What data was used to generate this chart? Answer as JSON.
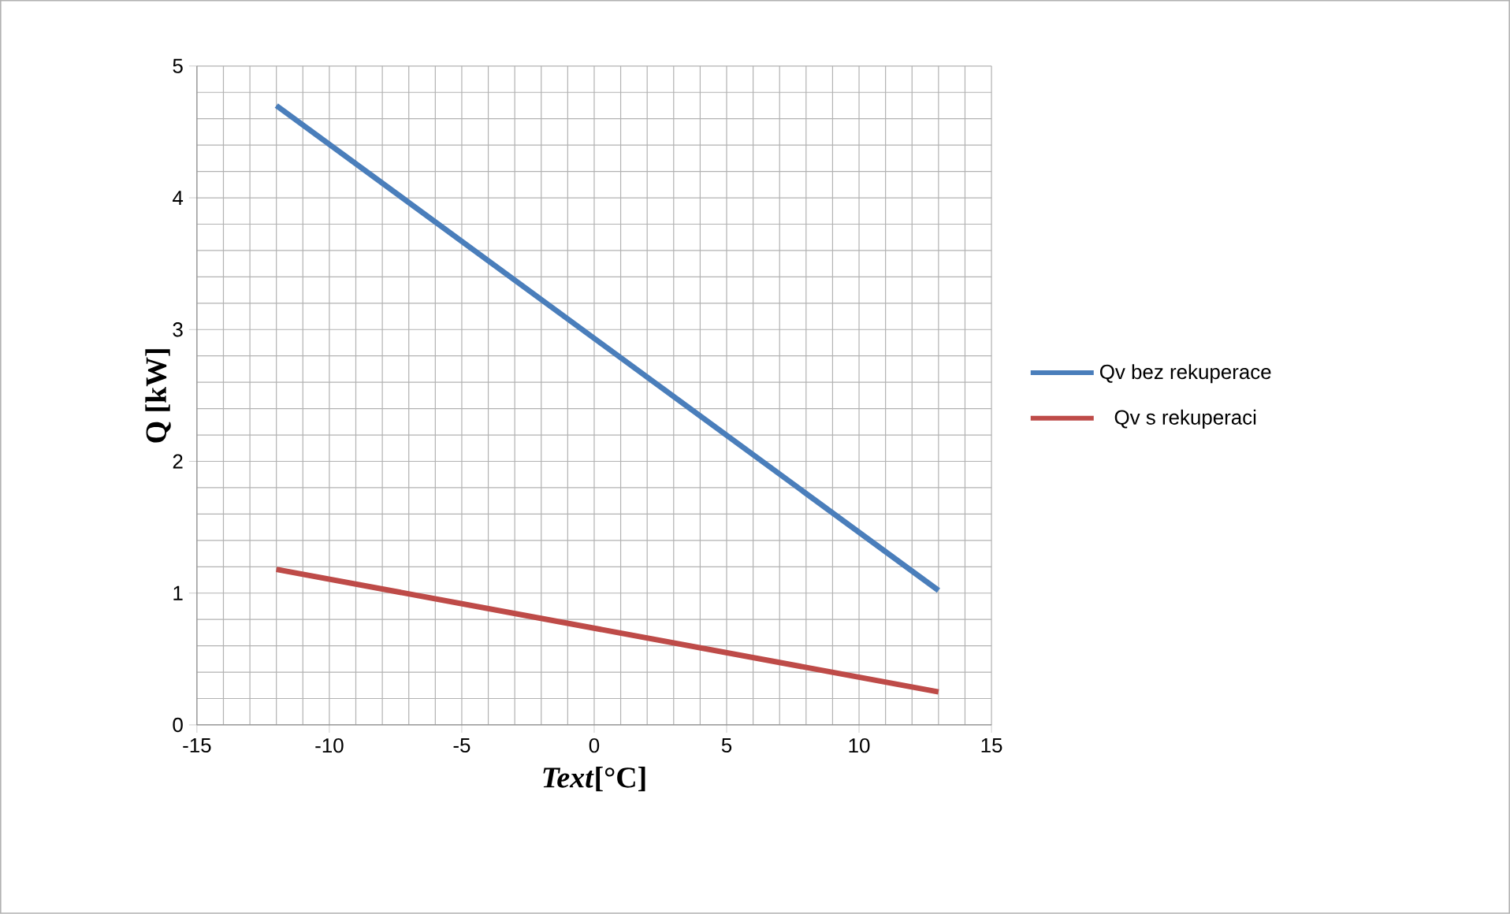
{
  "chart_data": {
    "type": "line",
    "xlabel": "*Text*[°C]",
    "ylabel": "Q [kW]",
    "x": [
      -12,
      13
    ],
    "series": [
      {
        "name": "Qv bez rekuperace",
        "color": "#4a7ebb",
        "values": [
          4.7,
          1.02
        ]
      },
      {
        "name": "Qv s rekuperaci",
        "color": "#be4b48",
        "values": [
          1.18,
          0.25
        ]
      }
    ],
    "xlim": [
      -15,
      15
    ],
    "xticks": [
      -15,
      -10,
      -5,
      0,
      5,
      10,
      15
    ],
    "ylim": [
      0,
      5
    ],
    "yticks": [
      0,
      1,
      2,
      3,
      4,
      5
    ],
    "grid": true,
    "legend": "right",
    "marker": "none",
    "line_style": "solid"
  }
}
